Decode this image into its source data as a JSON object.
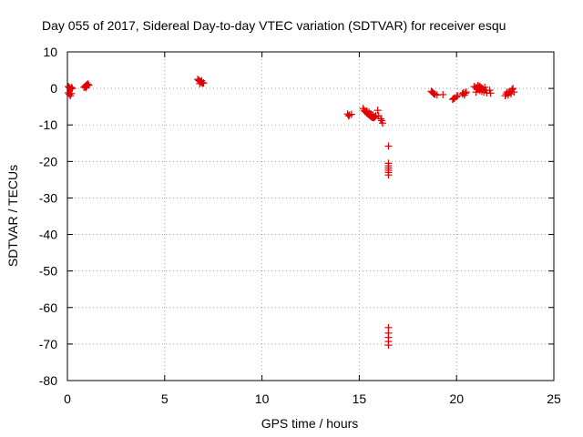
{
  "chart_data": {
    "type": "scatter",
    "title": "Day 055 of 2017, Sidereal Day-to-day VTEC variation (SDTVAR) for receiver esqu",
    "xlabel": "GPS time / hours",
    "ylabel": "SDTVAR / TECUs",
    "xlim": [
      0,
      25
    ],
    "ylim": [
      -80,
      10
    ],
    "xticks": [
      0,
      5,
      10,
      15,
      20,
      25
    ],
    "yticks": [
      10,
      0,
      -10,
      -20,
      -30,
      -40,
      -50,
      -60,
      -70,
      -80
    ],
    "grid": true,
    "marker": "+",
    "series": [
      {
        "name": "SDTVAR",
        "color": "#e00000",
        "points": [
          [
            0.05,
            0.5
          ],
          [
            0.1,
            0.2
          ],
          [
            0.15,
            -0.2
          ],
          [
            0.2,
            0.3
          ],
          [
            0.25,
            0.0
          ],
          [
            0.05,
            -1.2
          ],
          [
            0.1,
            -1.6
          ],
          [
            0.15,
            -2.0
          ],
          [
            0.2,
            -1.4
          ],
          [
            0.85,
            0.3
          ],
          [
            0.9,
            0.5
          ],
          [
            0.95,
            0.8
          ],
          [
            1.0,
            1.0
          ],
          [
            1.05,
            1.2
          ],
          [
            1.1,
            0.9
          ],
          [
            0.95,
            0.2
          ],
          [
            1.0,
            0.6
          ],
          [
            6.7,
            2.5
          ],
          [
            6.75,
            2.2
          ],
          [
            6.8,
            2.0
          ],
          [
            6.85,
            1.8
          ],
          [
            6.9,
            1.6
          ],
          [
            6.95,
            1.4
          ],
          [
            7.0,
            1.5
          ],
          [
            6.8,
            1.3
          ],
          [
            6.9,
            2.1
          ],
          [
            14.4,
            -7.0
          ],
          [
            14.5,
            -7.3
          ],
          [
            14.6,
            -7.1
          ],
          [
            14.45,
            -7.5
          ],
          [
            15.2,
            -5.5
          ],
          [
            15.25,
            -6.0
          ],
          [
            15.3,
            -6.3
          ],
          [
            15.35,
            -6.5
          ],
          [
            15.4,
            -6.8
          ],
          [
            15.45,
            -7.0
          ],
          [
            15.5,
            -7.2
          ],
          [
            15.55,
            -7.5
          ],
          [
            15.6,
            -7.7
          ],
          [
            15.65,
            -7.9
          ],
          [
            15.7,
            -8.0
          ],
          [
            15.75,
            -8.0
          ],
          [
            15.8,
            -7.8
          ],
          [
            15.5,
            -6.5
          ],
          [
            15.6,
            -7.0
          ],
          [
            15.7,
            -7.3
          ],
          [
            15.85,
            -7.5
          ],
          [
            15.4,
            -6.2
          ],
          [
            15.95,
            -6.0
          ],
          [
            16.0,
            -7.5
          ],
          [
            16.1,
            -8.3
          ],
          [
            16.15,
            -8.8
          ],
          [
            16.2,
            -9.5
          ],
          [
            16.5,
            -15.8
          ],
          [
            16.5,
            -20.5
          ],
          [
            16.5,
            -21.2
          ],
          [
            16.5,
            -21.8
          ],
          [
            16.5,
            -22.4
          ],
          [
            16.5,
            -23.0
          ],
          [
            16.5,
            -23.7
          ],
          [
            16.5,
            -65.5
          ],
          [
            16.5,
            -67.0
          ],
          [
            16.5,
            -68.2
          ],
          [
            16.5,
            -69.3
          ],
          [
            16.5,
            -70.3
          ],
          [
            18.7,
            -0.8
          ],
          [
            18.75,
            -1.0
          ],
          [
            18.8,
            -1.3
          ],
          [
            18.85,
            -1.5
          ],
          [
            18.9,
            -1.6
          ],
          [
            19.0,
            -1.8
          ],
          [
            19.3,
            -1.7
          ],
          [
            19.8,
            -3.0
          ],
          [
            19.85,
            -2.8
          ],
          [
            19.9,
            -2.6
          ],
          [
            20.0,
            -2.3
          ],
          [
            20.05,
            -2.0
          ],
          [
            20.3,
            -1.5
          ],
          [
            20.35,
            -1.2
          ],
          [
            20.4,
            -1.8
          ],
          [
            20.45,
            -1.3
          ],
          [
            20.5,
            -1.0
          ],
          [
            20.9,
            0.5
          ],
          [
            21.0,
            0.3
          ],
          [
            21.05,
            0.0
          ],
          [
            21.1,
            -0.3
          ],
          [
            21.15,
            0.4
          ],
          [
            21.2,
            -0.6
          ],
          [
            21.25,
            0.2
          ],
          [
            21.3,
            -0.8
          ],
          [
            21.35,
            -0.2
          ],
          [
            21.4,
            -1.0
          ],
          [
            21.45,
            0.3
          ],
          [
            21.5,
            -0.5
          ],
          [
            21.55,
            -1.2
          ],
          [
            21.0,
            -1.0
          ],
          [
            21.1,
            0.8
          ],
          [
            21.2,
            0.6
          ],
          [
            21.3,
            0.1
          ],
          [
            21.7,
            -0.5
          ],
          [
            21.75,
            -1.3
          ],
          [
            22.5,
            -2.0
          ],
          [
            22.55,
            -1.5
          ],
          [
            22.6,
            -1.0
          ],
          [
            22.65,
            -1.8
          ],
          [
            22.7,
            -1.2
          ],
          [
            22.75,
            -0.8
          ],
          [
            22.8,
            -1.5
          ],
          [
            22.85,
            -0.3
          ],
          [
            22.9,
            0.0
          ],
          [
            22.95,
            -1.0
          ]
        ]
      }
    ]
  }
}
